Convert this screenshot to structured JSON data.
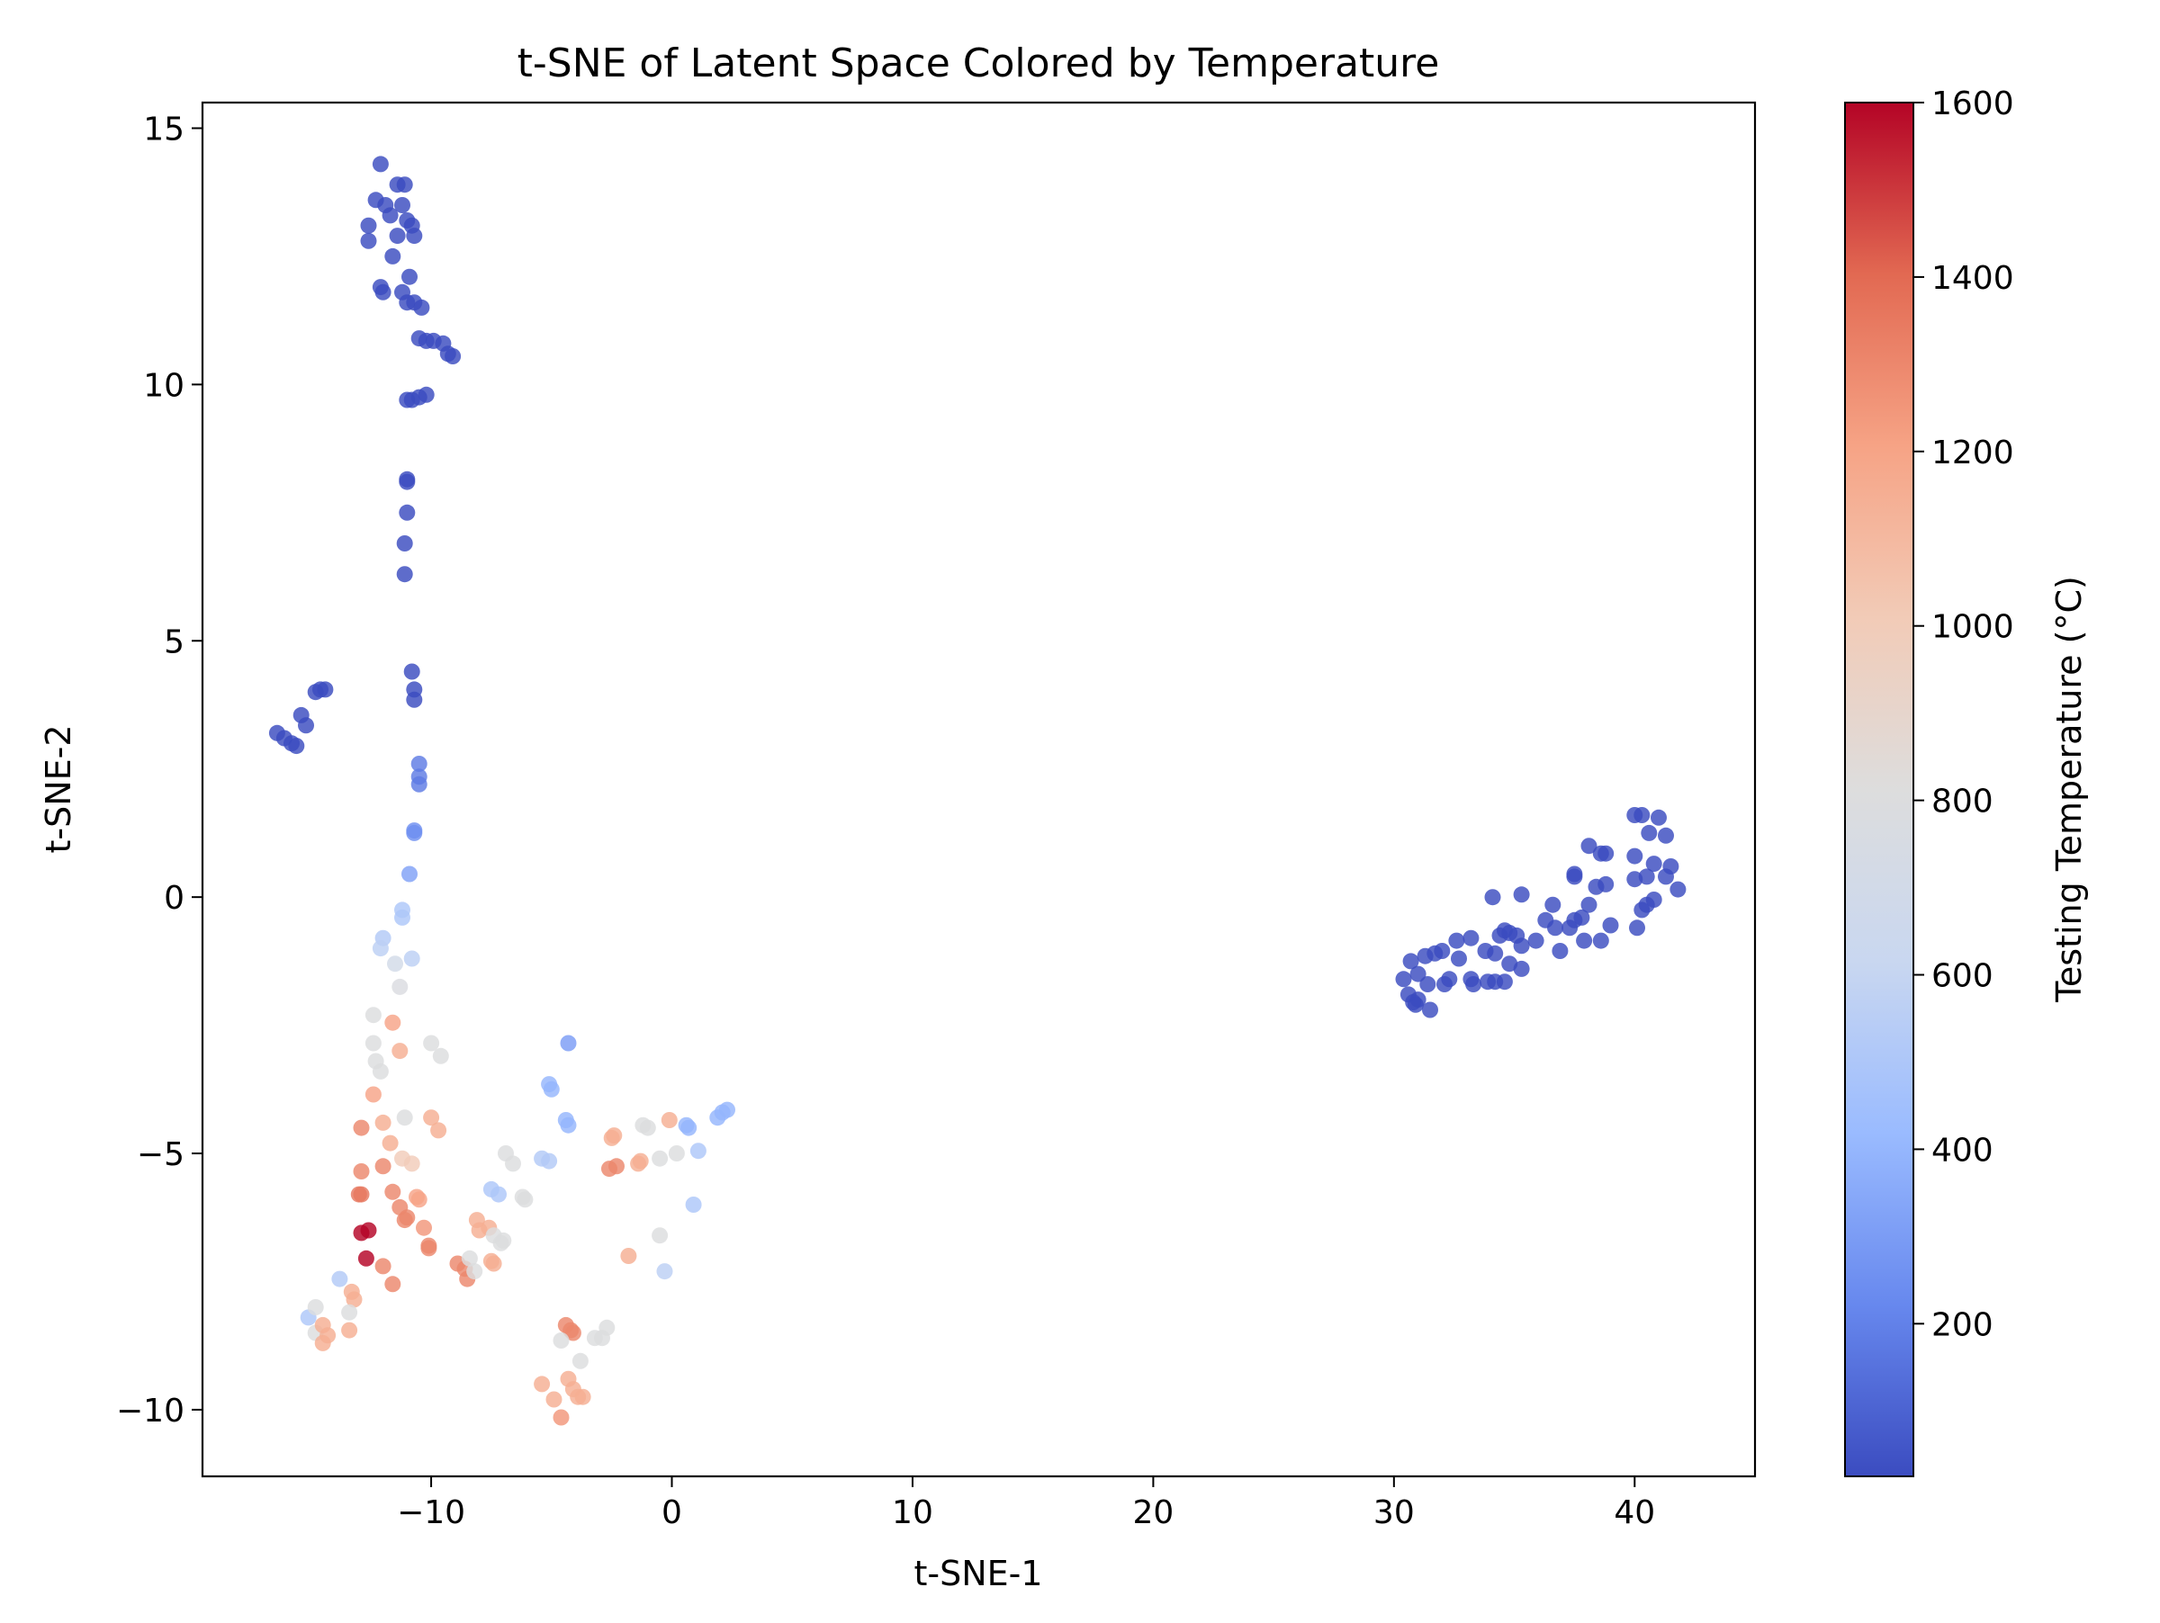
{
  "chart_data": {
    "type": "scatter",
    "title": "t-SNE of Latent Space Colored by Temperature",
    "xlabel": "t-SNE-1",
    "ylabel": "t-SNE-2",
    "xlim": [
      -19.5,
      45
    ],
    "ylim": [
      -11.3,
      15.5
    ],
    "xticks": [
      -10,
      0,
      10,
      20,
      30,
      40
    ],
    "yticks": [
      -10,
      -5,
      0,
      5,
      10,
      15
    ],
    "grid": false,
    "colorbar": {
      "label": "Testing Temperature (°C)",
      "colormap": "coolwarm",
      "range": [
        25,
        1600
      ],
      "ticks": [
        200,
        400,
        600,
        800,
        1000,
        1200,
        1400,
        1600
      ],
      "stops": [
        "#3b4cc0",
        "#6788ee",
        "#9abbff",
        "#c9d7f0",
        "#dddddd",
        "#f2cbb7",
        "#f6a385",
        "#e26952",
        "#b40426"
      ]
    },
    "points": [
      {
        "x": -12.1,
        "y": 14.3,
        "t": 25
      },
      {
        "x": -12.3,
        "y": 13.6,
        "t": 25
      },
      {
        "x": -11.9,
        "y": 13.5,
        "t": 25
      },
      {
        "x": -11.4,
        "y": 13.9,
        "t": 25
      },
      {
        "x": -11.1,
        "y": 13.9,
        "t": 25
      },
      {
        "x": -12.6,
        "y": 13.1,
        "t": 25
      },
      {
        "x": -11.7,
        "y": 13.3,
        "t": 25
      },
      {
        "x": -11.2,
        "y": 13.5,
        "t": 25
      },
      {
        "x": -11.0,
        "y": 13.2,
        "t": 25
      },
      {
        "x": -10.8,
        "y": 13.1,
        "t": 25
      },
      {
        "x": -10.7,
        "y": 12.9,
        "t": 25
      },
      {
        "x": -11.4,
        "y": 12.9,
        "t": 25
      },
      {
        "x": -12.6,
        "y": 12.8,
        "t": 25
      },
      {
        "x": -11.6,
        "y": 12.5,
        "t": 25
      },
      {
        "x": -10.9,
        "y": 12.1,
        "t": 25
      },
      {
        "x": -12.1,
        "y": 11.9,
        "t": 25
      },
      {
        "x": -12.0,
        "y": 11.8,
        "t": 25
      },
      {
        "x": -11.2,
        "y": 11.8,
        "t": 25
      },
      {
        "x": -11.0,
        "y": 11.6,
        "t": 25
      },
      {
        "x": -10.7,
        "y": 11.6,
        "t": 25
      },
      {
        "x": -10.4,
        "y": 11.5,
        "t": 25
      },
      {
        "x": -10.5,
        "y": 10.9,
        "t": 25
      },
      {
        "x": -10.2,
        "y": 10.85,
        "t": 25
      },
      {
        "x": -9.9,
        "y": 10.85,
        "t": 25
      },
      {
        "x": -9.5,
        "y": 10.8,
        "t": 25
      },
      {
        "x": -9.3,
        "y": 10.6,
        "t": 25
      },
      {
        "x": -9.1,
        "y": 10.55,
        "t": 25
      },
      {
        "x": -10.2,
        "y": 9.8,
        "t": 25
      },
      {
        "x": -10.5,
        "y": 9.75,
        "t": 25
      },
      {
        "x": -10.8,
        "y": 9.7,
        "t": 25
      },
      {
        "x": -11.0,
        "y": 9.7,
        "t": 25
      },
      {
        "x": -11.0,
        "y": 8.15,
        "t": 25
      },
      {
        "x": -11.0,
        "y": 8.1,
        "t": 25
      },
      {
        "x": -11.0,
        "y": 7.5,
        "t": 25
      },
      {
        "x": -11.1,
        "y": 6.9,
        "t": 25
      },
      {
        "x": -11.1,
        "y": 6.3,
        "t": 25
      },
      {
        "x": -10.8,
        "y": 4.4,
        "t": 25
      },
      {
        "x": -10.7,
        "y": 4.05,
        "t": 25
      },
      {
        "x": -10.7,
        "y": 3.85,
        "t": 25
      },
      {
        "x": -16.4,
        "y": 3.2,
        "t": 25
      },
      {
        "x": -16.1,
        "y": 3.1,
        "t": 25
      },
      {
        "x": -15.8,
        "y": 3.0,
        "t": 25
      },
      {
        "x": -15.6,
        "y": 2.95,
        "t": 25
      },
      {
        "x": -15.4,
        "y": 3.55,
        "t": 25
      },
      {
        "x": -15.2,
        "y": 3.35,
        "t": 25
      },
      {
        "x": -14.8,
        "y": 4.0,
        "t": 25
      },
      {
        "x": -14.6,
        "y": 4.05,
        "t": 25
      },
      {
        "x": -14.4,
        "y": 4.05,
        "t": 25
      },
      {
        "x": -10.5,
        "y": 2.6,
        "t": 180
      },
      {
        "x": -10.5,
        "y": 2.35,
        "t": 180
      },
      {
        "x": -10.5,
        "y": 2.2,
        "t": 180
      },
      {
        "x": -10.7,
        "y": 1.3,
        "t": 250
      },
      {
        "x": -10.7,
        "y": 1.25,
        "t": 250
      },
      {
        "x": -10.9,
        "y": 0.45,
        "t": 320
      },
      {
        "x": -11.2,
        "y": -0.25,
        "t": 500
      },
      {
        "x": -11.2,
        "y": -0.4,
        "t": 500
      },
      {
        "x": -12.0,
        "y": -0.8,
        "t": 520
      },
      {
        "x": -12.1,
        "y": -1.0,
        "t": 560
      },
      {
        "x": -10.8,
        "y": -1.2,
        "t": 560
      },
      {
        "x": -11.5,
        "y": -1.3,
        "t": 700
      },
      {
        "x": -11.3,
        "y": -1.75,
        "t": 780
      },
      {
        "x": -12.4,
        "y": -2.3,
        "t": 800
      },
      {
        "x": -12.4,
        "y": -2.85,
        "t": 800
      },
      {
        "x": -11.6,
        "y": -2.45,
        "t": 1200
      },
      {
        "x": -11.3,
        "y": -3.0,
        "t": 1150
      },
      {
        "x": -12.3,
        "y": -3.2,
        "t": 800
      },
      {
        "x": -12.1,
        "y": -3.4,
        "t": 800
      },
      {
        "x": -10.0,
        "y": -2.85,
        "t": 800
      },
      {
        "x": -9.6,
        "y": -3.1,
        "t": 800
      },
      {
        "x": -12.4,
        "y": -3.85,
        "t": 1200
      },
      {
        "x": -12.9,
        "y": -4.5,
        "t": 1300
      },
      {
        "x": -12.0,
        "y": -4.4,
        "t": 1150
      },
      {
        "x": -11.1,
        "y": -4.3,
        "t": 800
      },
      {
        "x": -10.0,
        "y": -4.3,
        "t": 1150
      },
      {
        "x": -9.7,
        "y": -4.55,
        "t": 1150
      },
      {
        "x": -11.7,
        "y": -4.8,
        "t": 1150
      },
      {
        "x": -11.2,
        "y": -5.1,
        "t": 1000
      },
      {
        "x": -10.8,
        "y": -5.2,
        "t": 1000
      },
      {
        "x": -12.0,
        "y": -5.25,
        "t": 1300
      },
      {
        "x": -12.9,
        "y": -5.35,
        "t": 1300
      },
      {
        "x": -12.9,
        "y": -5.8,
        "t": 1350
      },
      {
        "x": -13.0,
        "y": -5.8,
        "t": 1350
      },
      {
        "x": -11.6,
        "y": -5.75,
        "t": 1300
      },
      {
        "x": -10.6,
        "y": -5.85,
        "t": 1200
      },
      {
        "x": -10.5,
        "y": -5.9,
        "t": 1200
      },
      {
        "x": -11.3,
        "y": -6.05,
        "t": 1300
      },
      {
        "x": -11.0,
        "y": -6.25,
        "t": 1300
      },
      {
        "x": -11.1,
        "y": -6.3,
        "t": 1300
      },
      {
        "x": -10.3,
        "y": -6.45,
        "t": 1250
      },
      {
        "x": -10.1,
        "y": -6.8,
        "t": 1300
      },
      {
        "x": -10.1,
        "y": -6.85,
        "t": 1300
      },
      {
        "x": -12.9,
        "y": -6.55,
        "t": 1600
      },
      {
        "x": -12.6,
        "y": -6.5,
        "t": 1600
      },
      {
        "x": -12.7,
        "y": -7.05,
        "t": 1600
      },
      {
        "x": -12.0,
        "y": -7.2,
        "t": 1300
      },
      {
        "x": -11.6,
        "y": -7.55,
        "t": 1300
      },
      {
        "x": -13.8,
        "y": -7.45,
        "t": 520
      },
      {
        "x": -13.3,
        "y": -7.7,
        "t": 1150
      },
      {
        "x": -13.2,
        "y": -7.85,
        "t": 1150
      },
      {
        "x": -15.1,
        "y": -8.2,
        "t": 500
      },
      {
        "x": -14.8,
        "y": -8.0,
        "t": 800
      },
      {
        "x": -14.8,
        "y": -8.5,
        "t": 800
      },
      {
        "x": -14.5,
        "y": -8.35,
        "t": 1150
      },
      {
        "x": -14.5,
        "y": -8.7,
        "t": 1150
      },
      {
        "x": -14.3,
        "y": -8.55,
        "t": 1150
      },
      {
        "x": -13.4,
        "y": -8.1,
        "t": 800
      },
      {
        "x": -13.4,
        "y": -8.45,
        "t": 1150
      },
      {
        "x": -8.1,
        "y": -6.3,
        "t": 1150
      },
      {
        "x": -8.0,
        "y": -6.5,
        "t": 1150
      },
      {
        "x": -7.6,
        "y": -6.45,
        "t": 1150
      },
      {
        "x": -7.5,
        "y": -7.1,
        "t": 1150
      },
      {
        "x": -7.4,
        "y": -7.15,
        "t": 1150
      },
      {
        "x": -8.9,
        "y": -7.15,
        "t": 1300
      },
      {
        "x": -8.6,
        "y": -7.25,
        "t": 1300
      },
      {
        "x": -8.5,
        "y": -7.45,
        "t": 1300
      },
      {
        "x": -8.4,
        "y": -7.05,
        "t": 800
      },
      {
        "x": -8.2,
        "y": -7.3,
        "t": 800
      },
      {
        "x": -7.4,
        "y": -6.6,
        "t": 800
      },
      {
        "x": -7.1,
        "y": -6.75,
        "t": 800
      },
      {
        "x": -7.0,
        "y": -6.7,
        "t": 800
      },
      {
        "x": -7.5,
        "y": -5.7,
        "t": 500
      },
      {
        "x": -7.2,
        "y": -5.8,
        "t": 500
      },
      {
        "x": -6.9,
        "y": -5.0,
        "t": 800
      },
      {
        "x": -6.6,
        "y": -5.2,
        "t": 800
      },
      {
        "x": -6.2,
        "y": -5.85,
        "t": 800
      },
      {
        "x": -6.1,
        "y": -5.9,
        "t": 800
      },
      {
        "x": -5.4,
        "y": -5.1,
        "t": 520
      },
      {
        "x": -5.1,
        "y": -5.15,
        "t": 520
      },
      {
        "x": -5.1,
        "y": -3.65,
        "t": 400
      },
      {
        "x": -5.0,
        "y": -3.75,
        "t": 400
      },
      {
        "x": -4.4,
        "y": -4.35,
        "t": 400
      },
      {
        "x": -4.3,
        "y": -4.45,
        "t": 400
      },
      {
        "x": -4.3,
        "y": -2.85,
        "t": 300
      },
      {
        "x": -2.5,
        "y": -4.7,
        "t": 1150
      },
      {
        "x": -2.4,
        "y": -4.65,
        "t": 1150
      },
      {
        "x": -2.6,
        "y": -5.3,
        "t": 1300
      },
      {
        "x": -2.3,
        "y": -5.25,
        "t": 1300
      },
      {
        "x": -1.4,
        "y": -5.2,
        "t": 1150
      },
      {
        "x": -1.3,
        "y": -5.15,
        "t": 1150
      },
      {
        "x": -1.2,
        "y": -4.45,
        "t": 800
      },
      {
        "x": -1.0,
        "y": -4.5,
        "t": 800
      },
      {
        "x": -0.5,
        "y": -5.1,
        "t": 800
      },
      {
        "x": -0.1,
        "y": -4.35,
        "t": 1150
      },
      {
        "x": 0.2,
        "y": -5.0,
        "t": 800
      },
      {
        "x": 0.6,
        "y": -4.45,
        "t": 400
      },
      {
        "x": 0.7,
        "y": -4.5,
        "t": 400
      },
      {
        "x": 1.1,
        "y": -4.95,
        "t": 500
      },
      {
        "x": 0.9,
        "y": -6.0,
        "t": 500
      },
      {
        "x": 1.9,
        "y": -4.3,
        "t": 400
      },
      {
        "x": 2.1,
        "y": -4.2,
        "t": 400
      },
      {
        "x": 2.3,
        "y": -4.15,
        "t": 400
      },
      {
        "x": -0.5,
        "y": -6.6,
        "t": 800
      },
      {
        "x": -1.8,
        "y": -7.0,
        "t": 1150
      },
      {
        "x": -0.3,
        "y": -7.3,
        "t": 560
      },
      {
        "x": -4.4,
        "y": -8.35,
        "t": 1300
      },
      {
        "x": -4.2,
        "y": -8.45,
        "t": 1300
      },
      {
        "x": -4.1,
        "y": -8.5,
        "t": 1300
      },
      {
        "x": -4.6,
        "y": -8.65,
        "t": 800
      },
      {
        "x": -3.8,
        "y": -9.05,
        "t": 800
      },
      {
        "x": -3.2,
        "y": -8.6,
        "t": 800
      },
      {
        "x": -2.9,
        "y": -8.6,
        "t": 800
      },
      {
        "x": -2.7,
        "y": -8.4,
        "t": 800
      },
      {
        "x": -5.4,
        "y": -9.5,
        "t": 1150
      },
      {
        "x": -4.9,
        "y": -9.8,
        "t": 1150
      },
      {
        "x": -4.3,
        "y": -9.4,
        "t": 1150
      },
      {
        "x": -4.1,
        "y": -9.6,
        "t": 1150
      },
      {
        "x": -3.9,
        "y": -9.75,
        "t": 1150
      },
      {
        "x": -3.7,
        "y": -9.75,
        "t": 1150
      },
      {
        "x": -4.6,
        "y": -10.15,
        "t": 1250
      },
      {
        "x": 40.0,
        "y": 1.6,
        "t": 25
      },
      {
        "x": 40.3,
        "y": 1.6,
        "t": 25
      },
      {
        "x": 41.0,
        "y": 1.55,
        "t": 25
      },
      {
        "x": 40.6,
        "y": 1.25,
        "t": 25
      },
      {
        "x": 41.3,
        "y": 1.2,
        "t": 25
      },
      {
        "x": 38.1,
        "y": 1.0,
        "t": 25
      },
      {
        "x": 38.6,
        "y": 0.85,
        "t": 25
      },
      {
        "x": 38.8,
        "y": 0.85,
        "t": 25
      },
      {
        "x": 40.0,
        "y": 0.8,
        "t": 25
      },
      {
        "x": 40.8,
        "y": 0.65,
        "t": 25
      },
      {
        "x": 41.5,
        "y": 0.6,
        "t": 25
      },
      {
        "x": 37.5,
        "y": 0.45,
        "t": 25
      },
      {
        "x": 37.5,
        "y": 0.4,
        "t": 25
      },
      {
        "x": 40.5,
        "y": 0.4,
        "t": 25
      },
      {
        "x": 41.3,
        "y": 0.4,
        "t": 25
      },
      {
        "x": 40.0,
        "y": 0.35,
        "t": 25
      },
      {
        "x": 38.8,
        "y": 0.25,
        "t": 25
      },
      {
        "x": 38.4,
        "y": 0.2,
        "t": 25
      },
      {
        "x": 41.8,
        "y": 0.15,
        "t": 25
      },
      {
        "x": 35.3,
        "y": 0.05,
        "t": 25
      },
      {
        "x": 34.1,
        "y": 0.0,
        "t": 25
      },
      {
        "x": 40.8,
        "y": -0.05,
        "t": 25
      },
      {
        "x": 40.5,
        "y": -0.15,
        "t": 25
      },
      {
        "x": 38.1,
        "y": -0.15,
        "t": 25
      },
      {
        "x": 36.6,
        "y": -0.15,
        "t": 25
      },
      {
        "x": 40.3,
        "y": -0.25,
        "t": 25
      },
      {
        "x": 37.8,
        "y": -0.4,
        "t": 25
      },
      {
        "x": 37.5,
        "y": -0.45,
        "t": 25
      },
      {
        "x": 36.3,
        "y": -0.45,
        "t": 25
      },
      {
        "x": 39.0,
        "y": -0.55,
        "t": 25
      },
      {
        "x": 40.1,
        "y": -0.6,
        "t": 25
      },
      {
        "x": 37.3,
        "y": -0.6,
        "t": 25
      },
      {
        "x": 36.7,
        "y": -0.6,
        "t": 25
      },
      {
        "x": 34.6,
        "y": -0.65,
        "t": 25
      },
      {
        "x": 34.8,
        "y": -0.7,
        "t": 25
      },
      {
        "x": 35.1,
        "y": -0.75,
        "t": 25
      },
      {
        "x": 34.4,
        "y": -0.75,
        "t": 25
      },
      {
        "x": 33.2,
        "y": -0.8,
        "t": 25
      },
      {
        "x": 35.9,
        "y": -0.85,
        "t": 25
      },
      {
        "x": 32.6,
        "y": -0.85,
        "t": 25
      },
      {
        "x": 38.6,
        "y": -0.85,
        "t": 25
      },
      {
        "x": 37.9,
        "y": -0.85,
        "t": 25
      },
      {
        "x": 35.3,
        "y": -0.95,
        "t": 25
      },
      {
        "x": 33.8,
        "y": -1.05,
        "t": 25
      },
      {
        "x": 34.2,
        "y": -1.1,
        "t": 25
      },
      {
        "x": 36.9,
        "y": -1.05,
        "t": 25
      },
      {
        "x": 32.0,
        "y": -1.05,
        "t": 25
      },
      {
        "x": 31.7,
        "y": -1.1,
        "t": 25
      },
      {
        "x": 31.3,
        "y": -1.15,
        "t": 25
      },
      {
        "x": 32.7,
        "y": -1.2,
        "t": 25
      },
      {
        "x": 30.7,
        "y": -1.25,
        "t": 25
      },
      {
        "x": 34.8,
        "y": -1.3,
        "t": 25
      },
      {
        "x": 35.3,
        "y": -1.4,
        "t": 25
      },
      {
        "x": 31.0,
        "y": -1.5,
        "t": 25
      },
      {
        "x": 32.3,
        "y": -1.6,
        "t": 25
      },
      {
        "x": 33.2,
        "y": -1.6,
        "t": 25
      },
      {
        "x": 30.4,
        "y": -1.6,
        "t": 25
      },
      {
        "x": 33.9,
        "y": -1.65,
        "t": 25
      },
      {
        "x": 34.2,
        "y": -1.65,
        "t": 25
      },
      {
        "x": 34.6,
        "y": -1.65,
        "t": 25
      },
      {
        "x": 31.4,
        "y": -1.7,
        "t": 25
      },
      {
        "x": 33.3,
        "y": -1.7,
        "t": 25
      },
      {
        "x": 32.1,
        "y": -1.7,
        "t": 25
      },
      {
        "x": 30.6,
        "y": -1.9,
        "t": 25
      },
      {
        "x": 31.0,
        "y": -2.0,
        "t": 25
      },
      {
        "x": 30.8,
        "y": -2.05,
        "t": 25
      },
      {
        "x": 30.9,
        "y": -2.1,
        "t": 25
      },
      {
        "x": 31.5,
        "y": -2.2,
        "t": 25
      }
    ]
  }
}
